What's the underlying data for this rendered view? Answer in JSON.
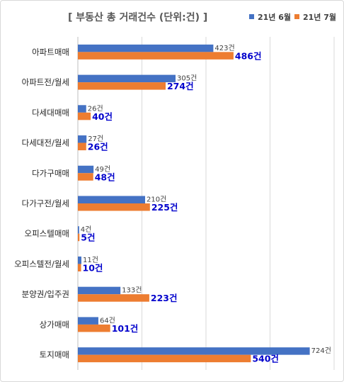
{
  "chart_data": {
    "type": "bar",
    "orientation": "horizontal",
    "title": "[ 부동산 총 거래건수 (단위:건) ]",
    "categories": [
      "아파트매매",
      "아파트전/월세",
      "다세대매매",
      "다세대전/월세",
      "다가구매매",
      "다가구전/월세",
      "오피스텔매매",
      "오피스텔전/월세",
      "분양권/입주권",
      "상가매매",
      "토지매매"
    ],
    "series": [
      {
        "name": "21년 6월",
        "color": "#4472C4",
        "values": [
          423,
          305,
          26,
          27,
          49,
          210,
          4,
          11,
          133,
          64,
          724
        ],
        "labels": [
          "423건",
          "305건",
          "26건",
          "27건",
          "49건",
          "210건",
          "4건",
          "11건",
          "133건",
          "64건",
          "724건"
        ]
      },
      {
        "name": "21년 7월",
        "color": "#ED7D31",
        "label_color": "#0000CC",
        "values": [
          486,
          274,
          40,
          26,
          48,
          225,
          5,
          10,
          223,
          101,
          540
        ],
        "labels": [
          "486건",
          "274건",
          "40건",
          "26건",
          "48건",
          "225건",
          "5건",
          "10건",
          "223건",
          "101건",
          "540건"
        ]
      }
    ],
    "xlim": [
      0,
      800
    ],
    "grid": true,
    "legend": "top-right"
  }
}
